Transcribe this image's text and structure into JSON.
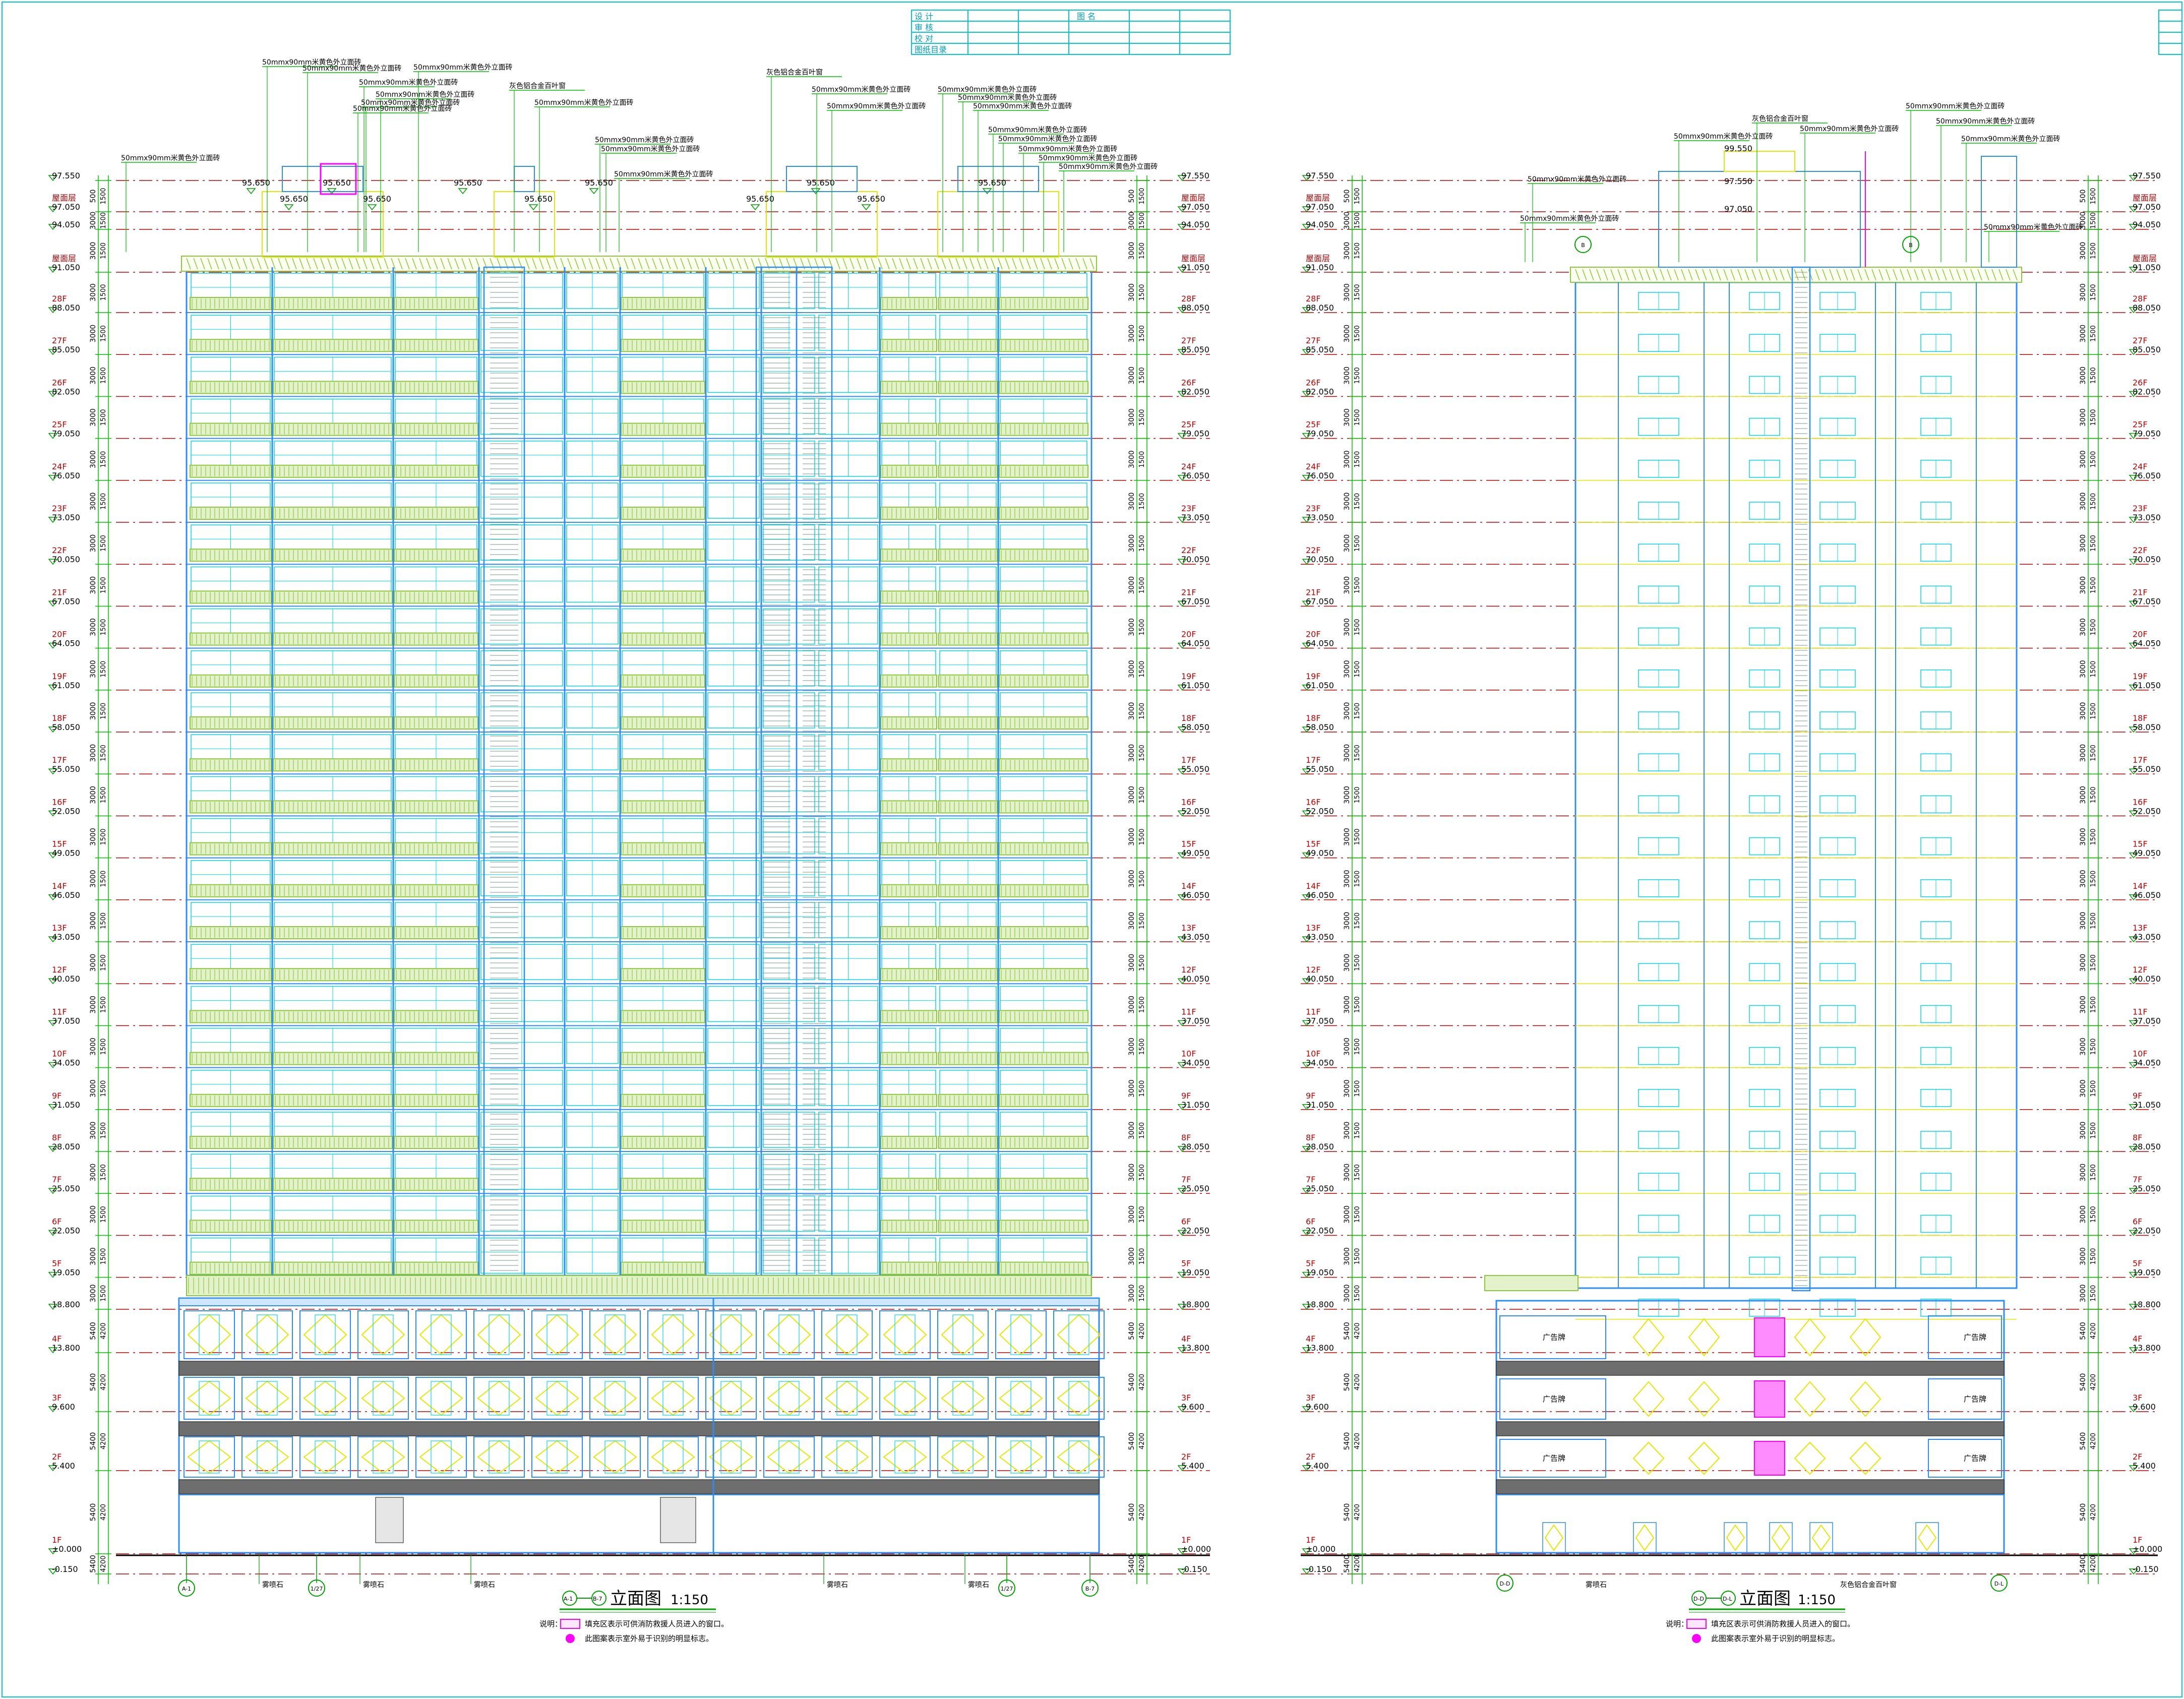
{
  "title_block": [
    "设 计",
    "审 核",
    "校 对",
    "图纸目录"
  ],
  "title_block_right": [
    "图 名"
  ],
  "levels": [
    {
      "label": "",
      "value": "97.550"
    },
    {
      "label": "屋面层",
      "value": "97.050"
    },
    {
      "label": "",
      "value": "94.050"
    },
    {
      "label": "屋面层",
      "value": "91.050"
    },
    {
      "label": "28F",
      "value": "88.050"
    },
    {
      "label": "27F",
      "value": "85.050"
    },
    {
      "label": "26F",
      "value": "82.050"
    },
    {
      "label": "25F",
      "value": "79.050"
    },
    {
      "label": "24F",
      "value": "76.050"
    },
    {
      "label": "23F",
      "value": "73.050"
    },
    {
      "label": "22F",
      "value": "70.050"
    },
    {
      "label": "21F",
      "value": "67.050"
    },
    {
      "label": "20F",
      "value": "64.050"
    },
    {
      "label": "19F",
      "value": "61.050"
    },
    {
      "label": "18F",
      "value": "58.050"
    },
    {
      "label": "17F",
      "value": "55.050"
    },
    {
      "label": "16F",
      "value": "52.050"
    },
    {
      "label": "15F",
      "value": "49.050"
    },
    {
      "label": "14F",
      "value": "46.050"
    },
    {
      "label": "13F",
      "value": "43.050"
    },
    {
      "label": "12F",
      "value": "40.050"
    },
    {
      "label": "11F",
      "value": "37.050"
    },
    {
      "label": "10F",
      "value": "34.050"
    },
    {
      "label": "9F",
      "value": "31.050"
    },
    {
      "label": "8F",
      "value": "28.050"
    },
    {
      "label": "7F",
      "value": "25.050"
    },
    {
      "label": "6F",
      "value": "22.050"
    },
    {
      "label": "5F",
      "value": "19.050"
    },
    {
      "label": "",
      "value": "18.800"
    },
    {
      "label": "4F",
      "value": "13.800"
    },
    {
      "label": "3F",
      "value": "9.600"
    },
    {
      "label": "2F",
      "value": "5.400"
    },
    {
      "label": "1F",
      "value": "±0.000"
    },
    {
      "label": "",
      "value": "-0.150"
    }
  ],
  "left_drawing": {
    "title": "立面图",
    "scale": "1:150",
    "axis_start": "A-1",
    "axis_end": "B-7",
    "note_label": "说明：",
    "note_1": "填充区表示可供消防救援人员进入的窗口。",
    "note_2": "此图案表示室外易于识别的明显标志。",
    "roof_elevations": [
      "95.650",
      "95.650",
      "95.650",
      "95.650",
      "95.650",
      "95.650",
      "95.650",
      "95.650",
      "95.650",
      "95.650",
      "95.650"
    ],
    "callouts": [
      "50mmx90mm米黄色外立面砖",
      "50mmx90mm米黄色外立面砖",
      "50mmx90mm米黄色外立面砖",
      "50mmx90mm米黄色外立面砖",
      "50mmx90mm米黄色外立面砖",
      "50mmx90mm米黄色外立面砖",
      "50mmx90mm米黄色外立面砖",
      "灰色铝合金百叶窗",
      "50mmx90mm米黄色外立面砖",
      "50mmx90mm米黄色外立面砖",
      "50mmx90mm米黄色外立面砖",
      "50mmx90mm米黄色外立面砖",
      "灰色铝合金百叶窗",
      "50mmx90mm米黄色外立面砖",
      "50mmx90mm米黄色外立面砖",
      "50mmx90mm米黄色外立面砖",
      "50mmx90mm米黄色外立面砖",
      "50mmx90mm米黄色外立面砖",
      "50mmx90mm米黄色外立面砖",
      "50mmx90mm米黄色外立面砖",
      "50mmx90mm米黄色外立面砖",
      "50mmx90mm米黄色外立面砖",
      "50mmx90mm米黄色外立面砖",
      "50mmx90mm米黄色外立面砖"
    ],
    "bottom_tags": [
      "雾喷石",
      "雾喷石",
      "雾喷石",
      "雾喷石",
      "雾喷石"
    ]
  },
  "right_drawing": {
    "title": "立面图",
    "scale": "1:150",
    "axis_start": "D-D",
    "axis_end": "D-L",
    "note_label": "说明：",
    "note_1": "填充区表示可供消防救援人员进入的窗口。",
    "note_2": "此图案表示室外易于识别的明显标志。",
    "roof_elevations": [
      "99.550",
      "97.550",
      "97.050"
    ],
    "callouts": [
      "灰色铝合金百叶窗",
      "50mmx90mm米黄色外立面砖",
      "50mmx90mm米黄色外立面砖",
      "50mmx90mm米黄色外立面砖",
      "50mmx90mm米黄色外立面砖",
      "50mmx90mm米黄色外立面砖",
      "50mmx90mm米黄色外立面砖",
      "50mmx90mm米黄色外立面砖",
      "50mmx90mm米黄色外立面砖"
    ],
    "billboard_label": "广告牌",
    "bottom_tags": [
      "雾喷石",
      "灰色铝合金百叶窗"
    ]
  },
  "colors": {
    "facade_line": "#2a8cff",
    "window": "#00d8e8",
    "dim": "#00c000",
    "axis": "#c00000",
    "balcony": "#8cc83c",
    "band": "#6e6e6e",
    "accent": "#ff00ff",
    "yellow": "#e6e600",
    "text": "#000000"
  }
}
